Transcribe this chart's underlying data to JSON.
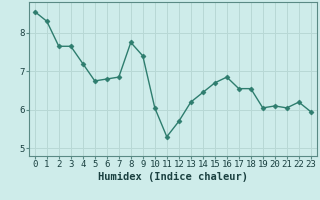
{
  "x": [
    0,
    1,
    2,
    3,
    4,
    5,
    6,
    7,
    8,
    9,
    10,
    11,
    12,
    13,
    14,
    15,
    16,
    17,
    18,
    19,
    20,
    21,
    22,
    23
  ],
  "y": [
    8.55,
    8.3,
    7.65,
    7.65,
    7.2,
    6.75,
    6.8,
    6.85,
    7.75,
    7.4,
    6.05,
    5.3,
    5.7,
    6.2,
    6.45,
    6.7,
    6.85,
    6.55,
    6.55,
    6.05,
    6.1,
    6.05,
    6.2,
    5.95
  ],
  "line_color": "#2e7d6e",
  "marker": "D",
  "marker_size": 2.5,
  "line_width": 1.0,
  "xlabel": "Humidex (Indice chaleur)",
  "xlim": [
    -0.5,
    23.5
  ],
  "ylim": [
    4.8,
    8.8
  ],
  "yticks": [
    5,
    6,
    7,
    8
  ],
  "xticks": [
    0,
    1,
    2,
    3,
    4,
    5,
    6,
    7,
    8,
    9,
    10,
    11,
    12,
    13,
    14,
    15,
    16,
    17,
    18,
    19,
    20,
    21,
    22,
    23
  ],
  "bg_color": "#ceecea",
  "grid_color": "#b8d8d5",
  "tick_label_size": 6.5,
  "xlabel_size": 7.5,
  "xlabel_color": "#1a4040",
  "spine_color": "#5a8a85"
}
